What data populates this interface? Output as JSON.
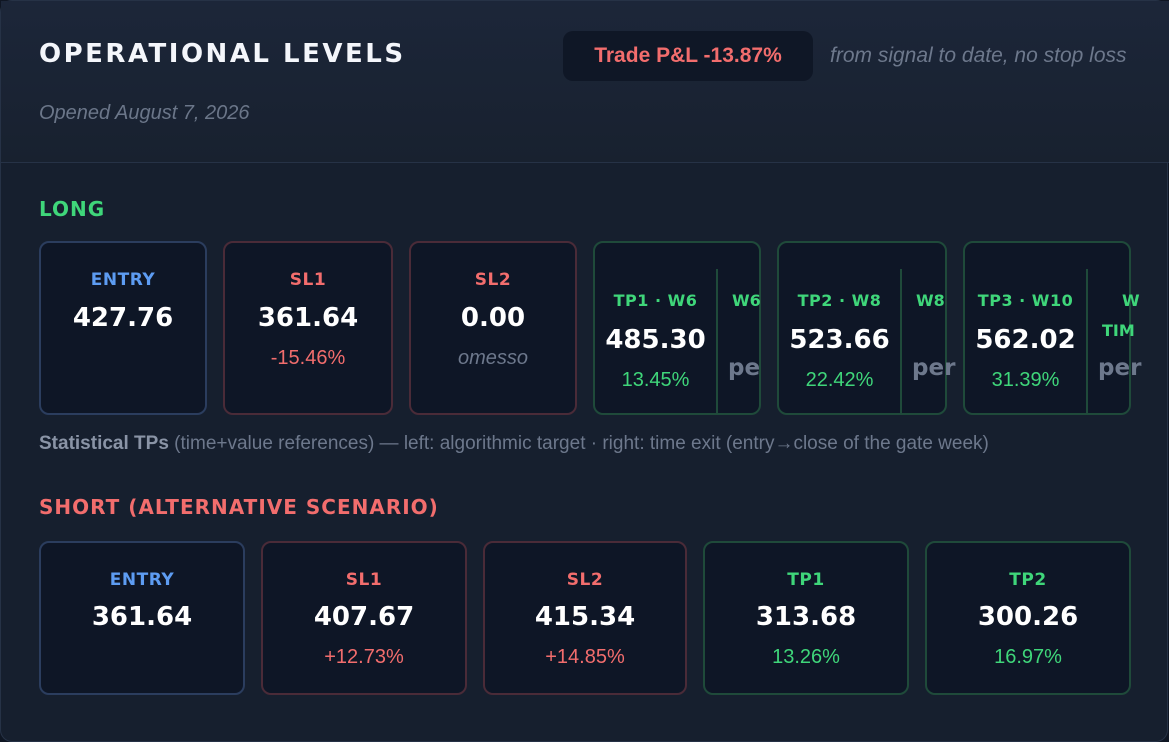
{
  "header": {
    "title": "OPERATIONAL LEVELS",
    "opened": "Opened August 7, 2026",
    "pnl_badge": "Trade P&L -13.87%",
    "pnl_note": "from signal to date, no stop loss"
  },
  "long": {
    "title": "LONG",
    "entry": {
      "label": "ENTRY",
      "value": "427.76"
    },
    "sl1": {
      "label": "SL1",
      "value": "361.64",
      "pct": "-15.46%"
    },
    "sl2": {
      "label": "SL2",
      "value": "0.00",
      "note": "omesso"
    },
    "tps": [
      {
        "label": "TP1 · W6",
        "value": "485.30",
        "pct": "13.45%",
        "right_label": "W6",
        "right_label2": "",
        "right_value": "pe"
      },
      {
        "label": "TP2 · W8",
        "value": "523.66",
        "pct": "22.42%",
        "right_label": "W8",
        "right_label2": "",
        "right_value": "per"
      },
      {
        "label": "TP3 · W10",
        "value": "562.02",
        "pct": "31.39%",
        "right_label": "W",
        "right_label2": "TIM",
        "right_value": "per"
      }
    ],
    "note_bold": "Statistical TPs",
    "note_rest": " (time+value references) — left: algorithmic target · right: time exit (entry→close of the gate week)"
  },
  "short": {
    "title": "SHORT (ALTERNATIVE SCENARIO)",
    "cards": [
      {
        "label": "ENTRY",
        "value": "361.64",
        "pct": ""
      },
      {
        "label": "SL1",
        "value": "407.67",
        "pct": "+12.73%"
      },
      {
        "label": "SL2",
        "value": "415.34",
        "pct": "+14.85%"
      },
      {
        "label": "TP1",
        "value": "313.68",
        "pct": "13.26%"
      },
      {
        "label": "TP2",
        "value": "300.26",
        "pct": "16.97%"
      }
    ]
  }
}
